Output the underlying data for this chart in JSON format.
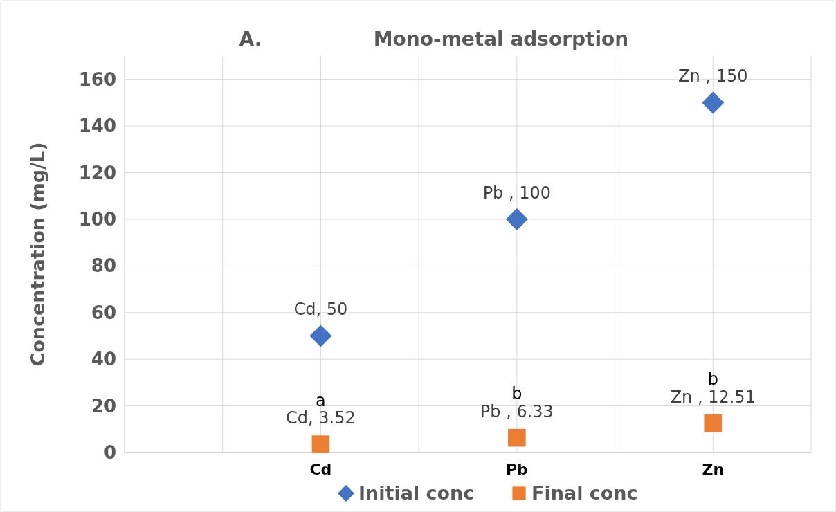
{
  "chart_data": {
    "type": "scatter",
    "title": "Mono-metal adsorption",
    "ylabel": "Concentration (mg/L)",
    "categories": [
      "Cd",
      "Pb",
      "Zn"
    ],
    "ylim": [
      0,
      170
    ],
    "yticks": [
      0,
      20,
      40,
      60,
      80,
      100,
      120,
      140,
      160
    ],
    "series": [
      {
        "name": "Initial conc",
        "color": "#4472c4",
        "marker": "diamond",
        "values": [
          50,
          100,
          150
        ],
        "value_labels": [
          "Cd, 50",
          "Pb , 100",
          "Zn , 150"
        ]
      },
      {
        "name": "Final conc",
        "color": "#ed7d31",
        "marker": "square",
        "values": [
          3.52,
          6.33,
          12.51
        ],
        "value_labels": [
          "Cd, 3.52",
          "Pb , 6.33",
          "Zn , 12.51"
        ]
      }
    ],
    "annotations": [
      "A.",
      "a",
      "b",
      "b"
    ],
    "grid": true,
    "legend": "bottom"
  }
}
